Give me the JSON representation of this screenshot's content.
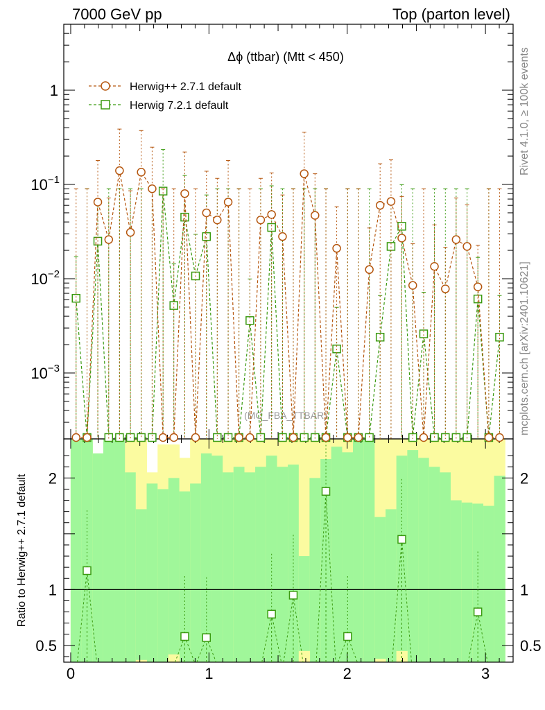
{
  "header": {
    "left": "7000 GeV pp",
    "right": "Top (parton level)"
  },
  "side_labels": {
    "rivet": "Rivet 4.1.0, ≥ 100k events",
    "mcplots": "mcplots.cern.ch [arXiv:2401.10621]"
  },
  "watermark": "(MC_FBA_TTBAR)",
  "colors": {
    "herwig_pp": "#b5560e",
    "herwig_7": "#3a9a10",
    "band_green": "#a0f79a",
    "band_yellow": "#fbfba0"
  },
  "chart_data": [
    {
      "type": "line",
      "title": "Δϕ (ttbar) (Mtt < 450)",
      "xlabel": "",
      "ylabel": "",
      "yscale": "log",
      "xlim": [
        -0.05,
        3.2
      ],
      "ylim": [
        0.0002,
        5
      ],
      "x_ticks": [
        "0",
        "1",
        "2",
        "3"
      ],
      "y_ticks": [
        "10^-3",
        "10^-2",
        "10^-1",
        "1"
      ],
      "legend": [
        "Herwig++ 2.7.1 default",
        "Herwig 7.2.1 default"
      ],
      "x": [
        0.039,
        0.118,
        0.196,
        0.275,
        0.353,
        0.432,
        0.51,
        0.589,
        0.668,
        0.746,
        0.825,
        0.903,
        0.982,
        1.06,
        1.139,
        1.217,
        1.296,
        1.374,
        1.453,
        1.532,
        1.61,
        1.689,
        1.767,
        1.846,
        1.924,
        2.003,
        2.081,
        2.16,
        2.238,
        2.317,
        2.395,
        2.474,
        2.553,
        2.631,
        2.71,
        2.788,
        2.867,
        2.945,
        3.024,
        3.102
      ],
      "series": [
        {
          "name": "Herwig++ 2.7.1 default",
          "marker": "circle",
          "values": [
            0,
            0,
            0.065,
            0.026,
            0.14,
            0.031,
            0.135,
            0.09,
            0,
            0,
            0.08,
            0,
            0.05,
            0.042,
            0.065,
            0,
            0,
            0.042,
            0.048,
            0.028,
            0,
            0.13,
            0.047,
            0,
            0.021,
            0,
            0,
            0.0125,
            0.06,
            0.066,
            0.027,
            0.0085,
            0,
            0.0135,
            0.0078,
            0.026,
            0.022,
            0.0082,
            0,
            0
          ]
        },
        {
          "name": "Herwig 7.2.1 default",
          "marker": "square",
          "values": [
            0.0062,
            0,
            0.025,
            0,
            0,
            0,
            0,
            0,
            0.085,
            0.0052,
            0.045,
            0.0107,
            0.028,
            0,
            0,
            0,
            0.0036,
            0,
            0.035,
            0,
            0,
            0,
            0,
            0,
            0.0018,
            0,
            0,
            0,
            0.0024,
            0.022,
            0.036,
            0,
            0.0026,
            0,
            0,
            0,
            0,
            0.0061,
            0,
            0.0024
          ]
        }
      ]
    },
    {
      "type": "line",
      "title": "",
      "xlabel": "",
      "ylabel": "Ratio to Herwig++ 2.7.1 default",
      "xlim": [
        -0.05,
        3.2
      ],
      "ylim": [
        0.35,
        2.35
      ],
      "x_ticks": [
        "0",
        "1",
        "2",
        "3"
      ],
      "y_ticks": [
        "0.5",
        "1",
        "2"
      ],
      "reference_line": 1,
      "series": [
        {
          "name": "Herwig 7.2.1 default",
          "marker": "square",
          "points": [
            [
              0.118,
              1.17
            ],
            [
              0.825,
              0.58
            ],
            [
              0.982,
              0.57
            ],
            [
              1.453,
              0.78
            ],
            [
              1.61,
              0.95
            ],
            [
              1.846,
              1.88
            ],
            [
              2.003,
              0.58
            ],
            [
              2.395,
              1.45
            ],
            [
              2.945,
              0.8
            ]
          ]
        }
      ],
      "band_yellow_top": [
        2.35,
        2.35,
        2.22,
        2.35,
        2.35,
        2.35,
        2.35,
        2.05,
        2.3,
        2.3,
        2.18,
        2.35,
        2.35,
        2.35,
        2.35,
        2.35,
        2.35,
        2.35,
        2.35,
        2.35,
        2.35,
        2.35,
        2.35,
        2.35,
        2.35,
        2.35,
        2.35,
        2.35,
        2.35,
        2.35,
        2.35,
        2.35,
        2.35,
        2.35,
        2.35,
        2.35,
        2.35,
        2.35,
        2.35,
        2.35
      ],
      "band_green_top": [
        2.35,
        2.35,
        2.22,
        2.35,
        2.35,
        2.05,
        1.72,
        1.95,
        1.9,
        2.0,
        1.88,
        1.95,
        2.22,
        2.2,
        2.05,
        2.1,
        2.05,
        2.1,
        2.2,
        2.1,
        2.12,
        1.3,
        2.0,
        2.17,
        2.28,
        2.23,
        2.35,
        2.35,
        1.65,
        1.72,
        2.2,
        2.25,
        2.18,
        2.1,
        2.05,
        1.8,
        1.78,
        1.77,
        1.75,
        2.02
      ],
      "band_green_bottom": [
        0.35,
        0.35,
        0.35,
        0.35,
        0.35,
        0.35,
        0.35,
        0.35,
        0.35,
        0.35,
        0.35,
        0.35,
        0.35,
        0.35,
        0.35,
        0.35,
        0.35,
        0.35,
        0.35,
        0.35,
        0.35,
        0.35,
        0.35,
        0.35,
        0.35,
        0.35,
        0.35,
        0.35,
        0.35,
        0.35,
        0.35,
        0.35,
        0.35,
        0.35,
        0.35,
        0.35,
        0.35,
        0.35,
        0.35,
        0.35
      ]
    }
  ]
}
